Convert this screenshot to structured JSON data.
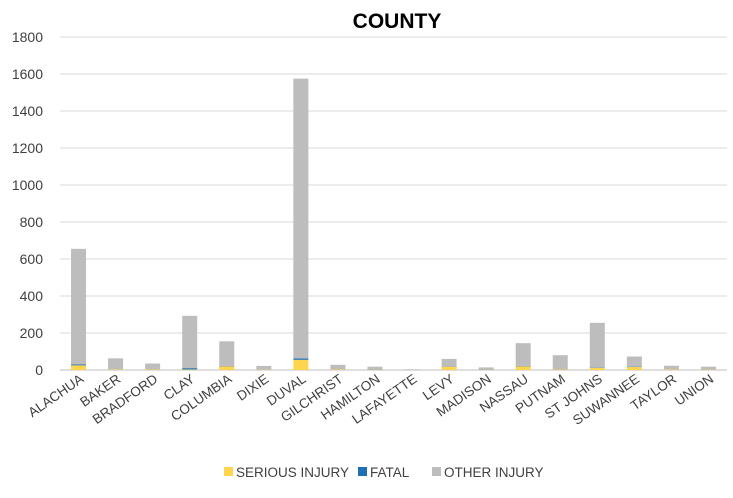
{
  "chart_data": {
    "type": "bar",
    "stacked": true,
    "title": "COUNTY",
    "xlabel": "",
    "ylabel": "",
    "ylim": [
      0,
      1800
    ],
    "yticks": [
      0,
      200,
      400,
      600,
      800,
      1000,
      1200,
      1400,
      1600,
      1800
    ],
    "grid": true,
    "legend_position": "bottom",
    "categories": [
      "ALACHUA",
      "BAKER",
      "BRADFORD",
      "CLAY",
      "COLUMBIA",
      "DIXIE",
      "DUVAL",
      "GILCHRIST",
      "HAMILTON",
      "LAFAYETTE",
      "LEVY",
      "MADISON",
      "NASSAU",
      "PUTNAM",
      "ST JOHNS",
      "SUWANNEE",
      "TAYLOR",
      "UNION"
    ],
    "series": [
      {
        "name": "SERIOUS INJURY",
        "color": "#FFD54F",
        "values": [
          25,
          3,
          3,
          3,
          20,
          2,
          55,
          3,
          2,
          1,
          18,
          2,
          20,
          4,
          12,
          16,
          3,
          2
        ]
      },
      {
        "name": "FATAL",
        "color": "#1F6FB5",
        "values": [
          5,
          1,
          1,
          7,
          2,
          0,
          7,
          1,
          1,
          0,
          1,
          1,
          2,
          1,
          2,
          2,
          1,
          0
        ]
      },
      {
        "name": "OTHER INJURY",
        "color": "#BDBDBD",
        "values": [
          625,
          59,
          31,
          283,
          133,
          20,
          1513,
          24,
          15,
          3,
          41,
          11,
          123,
          75,
          241,
          55,
          19,
          16
        ]
      }
    ]
  }
}
